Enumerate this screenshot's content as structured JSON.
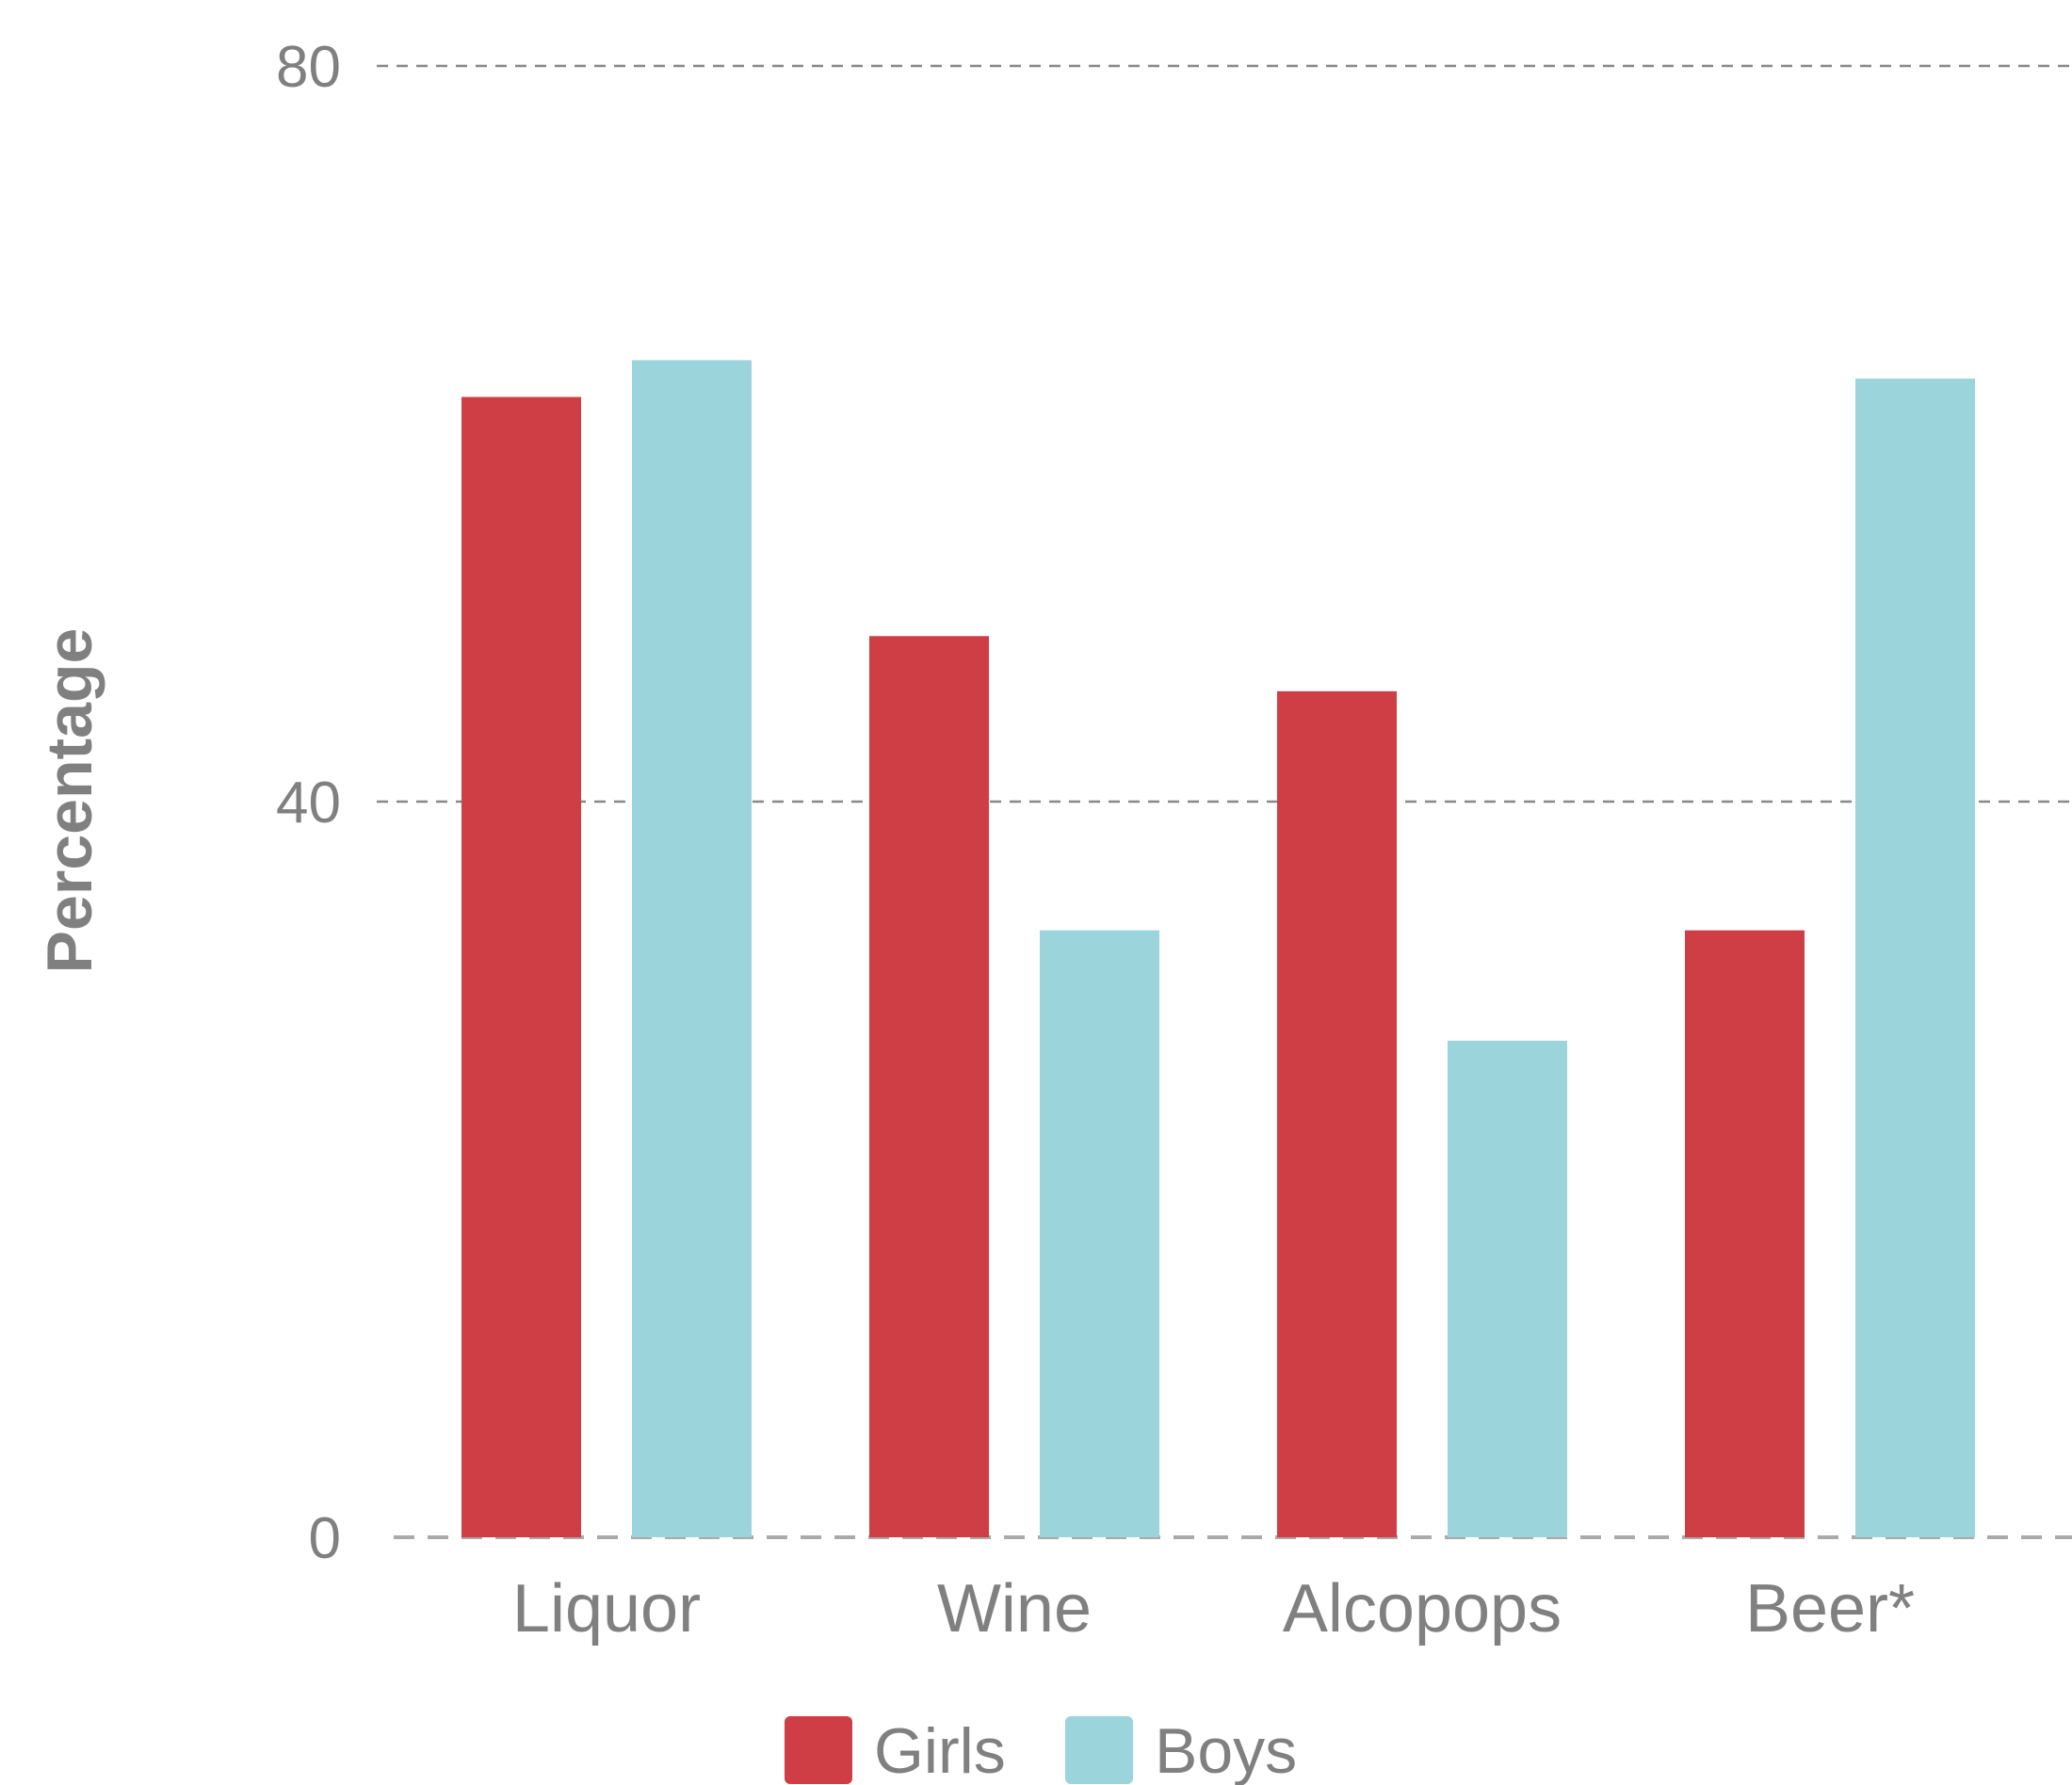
{
  "chart_data": {
    "type": "bar",
    "categories": [
      "Liquor",
      "Wine",
      "Alcopops",
      "Beer*"
    ],
    "series": [
      {
        "name": "Girls",
        "color": "#cf3e44",
        "values": [
          62,
          49,
          46,
          33
        ]
      },
      {
        "name": "Boys",
        "color": "#9bd4db",
        "values": [
          64,
          33,
          27,
          63
        ]
      }
    ],
    "ylabel": "Percentage",
    "yticks": [
      0,
      40,
      80
    ],
    "ylim": [
      0,
      80
    ],
    "grid": true,
    "legend_position": "bottom-center"
  }
}
